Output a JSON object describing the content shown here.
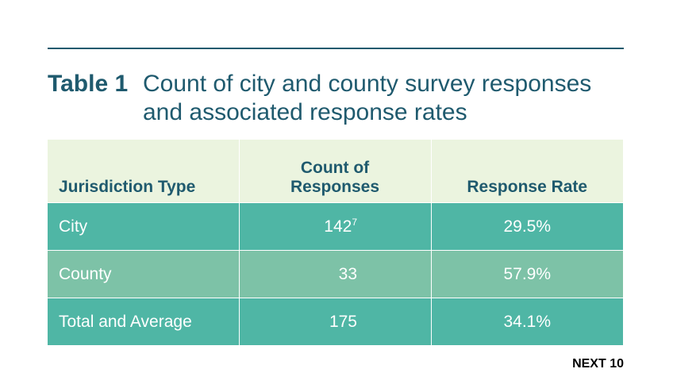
{
  "title": {
    "label": "Table 1",
    "text": "Count of city and county survey responses and associated response rates"
  },
  "table": {
    "headers": [
      "Jurisdiction Type",
      "Count of Responses",
      "Response Rate"
    ],
    "rows": [
      {
        "jurisdiction": "City",
        "count": "142",
        "count_footnote": "7",
        "rate": "29.5%"
      },
      {
        "jurisdiction": "County",
        "count": "33",
        "count_footnote": "",
        "rate": "57.9%"
      },
      {
        "jurisdiction": "Total and Average",
        "count": "175",
        "count_footnote": "",
        "rate": "34.1%"
      }
    ]
  },
  "source": "NEXT 10",
  "colors": {
    "title": "#1f5a6e",
    "header_bg": "#ebf4df",
    "row_dark": "#4fb6a5",
    "row_light": "#7dc2a7",
    "rule": "#1f5a6e"
  }
}
